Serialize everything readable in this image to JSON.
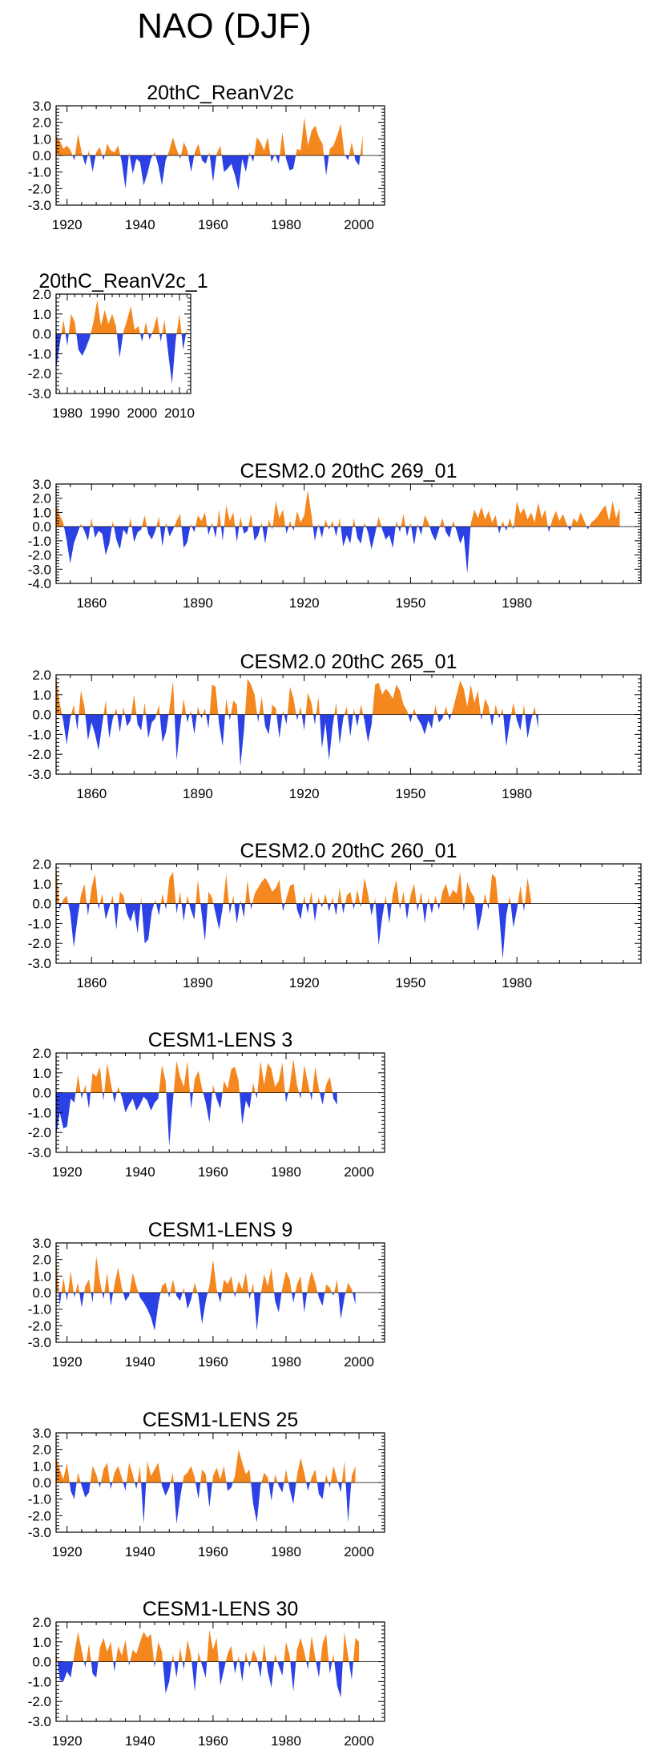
{
  "page": {
    "title": "NAO (DJF)"
  },
  "colors": {
    "positive": "#f5871f",
    "negative": "#2b41e6",
    "frame": "#000000"
  },
  "chart_data": [
    {
      "type": "area",
      "title": "20thC_ReanV2c",
      "xlim": [
        1917,
        2007
      ],
      "ylim": [
        -3.0,
        3.0
      ],
      "yticks": [
        -3.0,
        -2.0,
        -1.0,
        0.0,
        1.0,
        2.0,
        3.0
      ],
      "ytick_labels": [
        "-3.0",
        "-2.0",
        "-1.0",
        "0.0",
        "1.0",
        "2.0",
        "3.0"
      ],
      "xticks": [
        1920,
        1940,
        1960,
        1980,
        2000
      ],
      "xtick_labels": [
        "1920",
        "1940",
        "1960",
        "1980",
        "2000"
      ],
      "x_start": 1917,
      "values": [
        1.2,
        0.9,
        0.4,
        0.6,
        0.3,
        -0.3,
        1.3,
        0.2,
        -0.6,
        0.3,
        -1.0,
        0.2,
        0.5,
        -0.3,
        0.7,
        0.3,
        0.2,
        0.6,
        -0.4,
        -2.0,
        0.2,
        -1.1,
        -0.2,
        -0.4,
        -1.8,
        -1.1,
        -0.2,
        0.2,
        -0.6,
        -1.8,
        -0.3,
        0.3,
        1.1,
        0.4,
        -0.2,
        0.8,
        0.3,
        -1.0,
        0.2,
        0.7,
        -0.3,
        -0.5,
        0.2,
        -1.6,
        0.1,
        0.6,
        -1.0,
        -0.8,
        -0.5,
        -1.2,
        -2.1,
        -0.2,
        -1.0,
        0.2,
        -0.4,
        1.1,
        0.8,
        0.3,
        1.1,
        -0.4,
        0.1,
        -0.5,
        1.4,
        -0.2,
        -0.9,
        -0.8,
        0.4,
        0.3,
        2.3,
        0.6,
        1.5,
        1.8,
        1.1,
        0.7,
        -1.2,
        0.4,
        0.6,
        1.2,
        1.9,
        0.1,
        -0.3,
        0.8,
        -0.3,
        -0.6,
        1.2
      ]
    },
    {
      "type": "area",
      "title": "20thC_ReanV2c_1",
      "xlim": [
        1977,
        2013
      ],
      "ylim": [
        -3.0,
        2.0
      ],
      "yticks": [
        -3.0,
        -2.0,
        -1.0,
        0.0,
        1.0,
        2.0
      ],
      "ytick_labels": [
        "-3.0",
        "-2.0",
        "-1.0",
        "0.0",
        "1.0",
        "2.0"
      ],
      "xticks": [
        1980,
        1990,
        2000,
        2010
      ],
      "xtick_labels": [
        "1980",
        "1990",
        "2000",
        "2010"
      ],
      "x_start": 1977,
      "values": [
        -1.8,
        -0.5,
        0.7,
        -0.6,
        1.0,
        0.6,
        -0.8,
        -1.1,
        -0.7,
        -0.2,
        0.6,
        1.7,
        0.4,
        1.2,
        0.5,
        1.0,
        0.4,
        -1.2,
        0.1,
        0.7,
        1.4,
        0.2,
        0.4,
        -0.4,
        0.6,
        -0.3,
        0.2,
        0.9,
        -0.4,
        0.7,
        -1.0,
        -2.5,
        -0.3,
        1.0,
        -0.8,
        0.3
      ]
    },
    {
      "type": "area",
      "title": "CESM2.0 20thC 269_01",
      "xlim": [
        1850,
        2015
      ],
      "ylim": [
        -4.0,
        3.0
      ],
      "yticks": [
        -4.0,
        -3.0,
        -2.0,
        -1.0,
        0.0,
        1.0,
        2.0,
        3.0
      ],
      "ytick_labels": [
        "-4.0",
        "-3.0",
        "-2.0",
        "-1.0",
        "0.0",
        "1.0",
        "2.0",
        "3.0"
      ],
      "xticks": [
        1860,
        1890,
        1920,
        1950,
        1980
      ],
      "xtick_labels": [
        "1860",
        "1890",
        "1920",
        "1950",
        "1980"
      ],
      "x_start": 1850,
      "values": [
        1.5,
        0.8,
        0.3,
        -1.0,
        -2.6,
        -1.2,
        -0.5,
        0.2,
        -0.3,
        -1.0,
        0.6,
        -0.8,
        -0.3,
        -0.5,
        -2.0,
        -1.2,
        0.4,
        -0.9,
        -1.6,
        -0.2,
        -0.6,
        0.6,
        -1.1,
        -0.4,
        -0.2,
        0.8,
        -0.5,
        -0.9,
        -0.3,
        0.7,
        -1.4,
        0.3,
        -0.7,
        -0.2,
        0.4,
        0.9,
        -1.5,
        -1.1,
        0.2,
        -0.4,
        0.8,
        0.4,
        1.0,
        -0.6,
        0.3,
        -0.8,
        1.2,
        -1.0,
        1.5,
        0.4,
        1.0,
        -1.1,
        0.7,
        -0.5,
        -0.3,
        0.9,
        -1.0,
        -0.6,
        0.3,
        -1.2,
        0.5,
        -0.2,
        1.8,
        0.6,
        1.2,
        -0.5,
        0.4,
        -0.3,
        1.1,
        0.3,
        0.8,
        2.6,
        0.9,
        -1.0,
        0.2,
        -0.8,
        0.5,
        -0.2,
        0.4,
        -0.7,
        0.6,
        -1.4,
        -0.6,
        -1.2,
        0.6,
        -0.8,
        -1.2,
        0.3,
        -0.4,
        -1.6,
        -0.5,
        0.7,
        -0.2,
        -0.9,
        -0.6,
        -1.5,
        0.4,
        -0.4,
        0.9,
        -0.7,
        0.3,
        -1.3,
        0.2,
        -0.6,
        0.8,
        0.3,
        -0.5,
        -1.0,
        -0.2,
        0.6,
        -0.4,
        -0.8,
        0.4,
        -0.3,
        -1.2,
        -0.6,
        -3.3,
        0.2,
        1.2,
        0.6,
        1.4,
        0.5,
        1.1,
        0.3,
        0.8,
        -0.5,
        0.4,
        -0.3,
        0.6,
        -0.2,
        1.8,
        0.9,
        1.3,
        0.5,
        1.0,
        0.3,
        1.7,
        0.6,
        1.2,
        -0.4,
        0.5,
        1.1,
        0.4,
        0.9,
        0.2,
        -0.3,
        0.6,
        0.3,
        1.0,
        0.4,
        -0.2,
        0.3,
        0.5,
        0.8,
        1.2,
        1.5,
        0.4,
        1.8,
        0.6,
        1.3
      ]
    },
    {
      "type": "area",
      "title": "CESM2.0 20thC 265_01",
      "xlim": [
        1850,
        2015
      ],
      "ylim": [
        -3.0,
        2.0
      ],
      "yticks": [
        -3.0,
        -2.0,
        -1.0,
        0.0,
        1.0,
        2.0
      ],
      "ytick_labels": [
        "-3.0",
        "-2.0",
        "-1.0",
        "0.0",
        "1.0",
        "2.0"
      ],
      "xticks": [
        1860,
        1890,
        1920,
        1950,
        1980
      ],
      "xtick_labels": [
        "1860",
        "1890",
        "1920",
        "1950",
        "1980"
      ],
      "x_start": 1850,
      "values": [
        1.9,
        0.6,
        -0.3,
        -1.5,
        -0.2,
        0.5,
        -0.8,
        1.2,
        0.4,
        -1.3,
        -0.4,
        -1.0,
        -1.8,
        -0.5,
        0.7,
        -1.2,
        -0.2,
        0.3,
        -0.9,
        0.4,
        -0.6,
        -0.3,
        1.0,
        -0.5,
        -0.8,
        0.6,
        -1.2,
        -0.4,
        -0.2,
        0.5,
        -1.4,
        -0.9,
        0.3,
        1.7,
        -2.3,
        -0.6,
        0.8,
        -0.4,
        0.2,
        -1.0,
        0.4,
        -0.2,
        0.3,
        -0.7,
        1.5,
        1.4,
        -0.5,
        -1.6,
        0.8,
        -0.3,
        0.7,
        0.5,
        -2.6,
        -0.8,
        1.8,
        1.5,
        1.0,
        -0.4,
        0.9,
        -0.6,
        -1.0,
        0.5,
        0.3,
        -1.2,
        0.2,
        -0.5,
        1.4,
        0.8,
        -0.3,
        0.4,
        -0.8,
        1.1,
        0.6,
        -0.5,
        0.9,
        -1.7,
        -0.4,
        -2.3,
        -0.6,
        0.6,
        -1.5,
        -0.2,
        0.4,
        -1.1,
        0.3,
        -0.6,
        0.5,
        -0.3,
        -1.4,
        -0.5,
        1.5,
        1.6,
        1.0,
        1.3,
        1.1,
        0.8,
        1.5,
        1.2,
        0.5,
        0.2,
        -0.4,
        0.3,
        -0.2,
        -0.5,
        -1.0,
        -0.3,
        -0.7,
        0.5,
        -0.4,
        -0.2,
        0.4,
        -0.3,
        0.3,
        1.0,
        1.7,
        1.3,
        0.4,
        1.5,
        0.6,
        1.2,
        -0.3,
        0.8,
        0.4,
        -0.6,
        0.5,
        -0.2,
        0.3,
        -1.6,
        -0.4,
        0.6,
        -0.3,
        -0.8,
        0.5,
        -1.2,
        -0.3,
        0.4,
        -0.7
      ]
    },
    {
      "type": "area",
      "title": "CESM2.0 20thC 260_01",
      "xlim": [
        1850,
        2015
      ],
      "ylim": [
        -3.0,
        2.0
      ],
      "yticks": [
        -3.0,
        -2.0,
        -1.0,
        0.0,
        1.0,
        2.0
      ],
      "ytick_labels": [
        "-3.0",
        "-2.0",
        "-1.0",
        "0.0",
        "1.0",
        "2.0"
      ],
      "xticks": [
        1860,
        1890,
        1920,
        1950,
        1980
      ],
      "xtick_labels": [
        "1860",
        "1890",
        "1920",
        "1950",
        "1980"
      ],
      "x_start": 1850,
      "values": [
        1.9,
        -0.3,
        0.2,
        0.4,
        -0.5,
        -2.2,
        -0.8,
        0.4,
        1.0,
        -0.6,
        0.8,
        1.5,
        -0.3,
        0.5,
        -0.8,
        -0.2,
        0.4,
        -1.3,
        0.6,
        0.4,
        -0.5,
        -0.9,
        -0.3,
        -1.5,
        0.3,
        -2.0,
        -1.8,
        -0.4,
        0.2,
        -0.6,
        0.5,
        -0.3,
        1.3,
        1.6,
        -0.5,
        0.6,
        -0.9,
        0.4,
        -0.3,
        -0.8,
        1.2,
        -0.4,
        -1.9,
        0.6,
        0.3,
        -0.5,
        -1.3,
        -0.2,
        1.5,
        -0.5,
        0.4,
        -1.0,
        0.2,
        -0.7,
        1.2,
        -0.3,
        0.5,
        0.8,
        1.1,
        1.3,
        1.0,
        0.6,
        0.8,
        1.2,
        -0.4,
        0.3,
        0.9,
        1.0,
        -0.3,
        -0.8,
        0.4,
        -0.5,
        0.6,
        -0.9,
        0.3,
        -0.2,
        0.5,
        -0.4,
        0.3,
        -0.6,
        0.8,
        -0.5,
        0.4,
        0.6,
        -0.3,
        0.7,
        -0.2,
        1.3,
        0.5,
        -0.6,
        0.3,
        -2.1,
        -0.7,
        0.4,
        -1.0,
        0.5,
        1.2,
        -0.3,
        0.6,
        -0.8,
        0.4,
        1.0,
        -0.4,
        0.6,
        -1.0,
        0.3,
        -0.5,
        0.4,
        -0.3,
        0.6,
        1.0,
        0.3,
        0.7,
        0.5,
        1.6,
        -0.4,
        1.1,
        0.6,
        0.3,
        -1.4,
        -0.6,
        0.5,
        -0.3,
        1.5,
        1.3,
        -0.5,
        -2.8,
        -0.6,
        0.4,
        -1.2,
        -0.3,
        0.9,
        -0.4,
        1.3,
        0.2
      ]
    },
    {
      "type": "area",
      "title": "CESM1-LENS 3",
      "xlim": [
        1917,
        2007
      ],
      "ylim": [
        -3.0,
        2.0
      ],
      "yticks": [
        -3.0,
        -2.0,
        -1.0,
        0.0,
        1.0,
        2.0
      ],
      "ytick_labels": [
        "-3.0",
        "-2.0",
        "-1.0",
        "0.0",
        "1.0",
        "2.0"
      ],
      "xticks": [
        1920,
        1940,
        1960,
        1980,
        2000
      ],
      "xtick_labels": [
        "1920",
        "1940",
        "1960",
        "1980",
        "2000"
      ],
      "x_start": 1917,
      "values": [
        -2.2,
        -1.0,
        -1.8,
        -1.7,
        -0.3,
        -0.5,
        0.9,
        -0.3,
        0.4,
        -0.8,
        1.0,
        0.8,
        1.3,
        -0.4,
        1.5,
        0.5,
        -0.5,
        0.3,
        -0.2,
        -1.0,
        -0.6,
        -0.3,
        -0.9,
        -0.6,
        -0.2,
        -0.4,
        -0.9,
        -0.5,
        -0.3,
        1.4,
        0.6,
        -2.7,
        -0.4,
        1.6,
        0.8,
        0.3,
        1.6,
        -0.8,
        0.7,
        1.1,
        0.2,
        -0.5,
        -1.5,
        0.4,
        -0.3,
        -0.8,
        0.6,
        0.2,
        1.2,
        1.3,
        0.6,
        -1.6,
        -0.4,
        -0.8,
        0.5,
        -0.3,
        1.6,
        0.4,
        1.5,
        1.2,
        0.3,
        0.6,
        1.5,
        -0.5,
        0.3,
        1.7,
        0.4,
        -0.3,
        1.4,
        0.5,
        -0.4,
        1.3,
        0.2,
        -0.6,
        0.4,
        0.8,
        -0.3,
        -0.6
      ]
    },
    {
      "type": "area",
      "title": "CESM1-LENS 9",
      "xlim": [
        1917,
        2007
      ],
      "ylim": [
        -3.0,
        3.0
      ],
      "yticks": [
        -3.0,
        -2.0,
        -1.0,
        0.0,
        1.0,
        2.0,
        3.0
      ],
      "ytick_labels": [
        "-3.0",
        "-2.0",
        "-1.0",
        "0.0",
        "1.0",
        "2.0",
        "3.0"
      ],
      "xticks": [
        1920,
        1940,
        1960,
        1980,
        2000
      ],
      "xtick_labels": [
        "1920",
        "1940",
        "1960",
        "1980",
        "2000"
      ],
      "x_start": 1917,
      "values": [
        2.1,
        -0.8,
        0.9,
        -0.5,
        1.3,
        -0.3,
        0.6,
        -0.9,
        0.4,
        0.8,
        -0.6,
        2.2,
        0.7,
        -0.4,
        1.2,
        -0.8,
        0.5,
        1.5,
        0.3,
        -0.5,
        -0.2,
        1.2,
        0.4,
        -0.3,
        -0.6,
        -1.0,
        -1.5,
        -2.3,
        -0.7,
        0.4,
        0.6,
        -0.3,
        0.8,
        -0.2,
        -0.5,
        0.3,
        -1.0,
        -0.4,
        0.6,
        -0.2,
        -1.9,
        -0.5,
        0.4,
        2.0,
        0.2,
        -0.6,
        0.8,
        0.5,
        1.0,
        -0.3,
        0.7,
        0.2,
        1.2,
        -0.4,
        0.6,
        -2.3,
        -0.2,
        1.1,
        0.4,
        1.5,
        -0.5,
        -1.2,
        0.3,
        1.3,
        0.8,
        -0.6,
        0.5,
        1.0,
        -1.2,
        0.4,
        1.3,
        0.6,
        -0.3,
        -0.8,
        0.5,
        0.3,
        -0.2,
        0.8,
        -1.6,
        -0.3,
        0.6,
        0.2,
        -0.7
      ]
    },
    {
      "type": "area",
      "title": "CESM1-LENS 25",
      "xlim": [
        1917,
        2007
      ],
      "ylim": [
        -3.0,
        3.0
      ],
      "yticks": [
        -3.0,
        -2.0,
        -1.0,
        0.0,
        1.0,
        2.0,
        3.0
      ],
      "ytick_labels": [
        "-3.0",
        "-2.0",
        "-1.0",
        "0.0",
        "1.0",
        "2.0",
        "3.0"
      ],
      "xticks": [
        1920,
        1940,
        1960,
        1980,
        2000
      ],
      "xtick_labels": [
        "1920",
        "1940",
        "1960",
        "1980",
        "2000"
      ],
      "x_start": 1917,
      "values": [
        1.5,
        0.8,
        0.2,
        1.2,
        -0.5,
        -1.0,
        0.6,
        -0.2,
        -0.9,
        -0.6,
        1.0,
        0.5,
        -0.3,
        0.8,
        1.2,
        -0.4,
        0.6,
        1.0,
        0.3,
        -0.5,
        1.2,
        0.5,
        -0.4,
        1.0,
        -2.5,
        1.3,
        0.4,
        0.8,
        1.2,
        -0.2,
        -0.8,
        -0.3,
        0.6,
        -2.5,
        -0.9,
        0.4,
        0.6,
        1.0,
        0.3,
        -1.0,
        0.8,
        0.5,
        -1.5,
        0.4,
        0.9,
        0.2,
        1.0,
        -0.5,
        -0.3,
        0.4,
        2.0,
        1.2,
        0.5,
        0.8,
        -1.3,
        -2.4,
        -0.2,
        0.6,
        0.3,
        -1.1,
        0.5,
        -0.2,
        -0.6,
        0.8,
        -0.4,
        -1.3,
        0.4,
        1.5,
        0.6,
        -0.5,
        0.3,
        0.8,
        -0.7,
        -1.0,
        0.5,
        -0.3,
        1.0,
        0.2,
        -0.6,
        1.3,
        -2.4,
        0.4,
        1.0
      ]
    },
    {
      "type": "area",
      "title": "CESM1-LENS 30",
      "xlim": [
        1917,
        2007
      ],
      "ylim": [
        -3.0,
        2.0
      ],
      "yticks": [
        -3.0,
        -2.0,
        -1.0,
        0.0,
        1.0,
        2.0
      ],
      "ytick_labels": [
        "-3.0",
        "-2.0",
        "-1.0",
        "0.0",
        "1.0",
        "2.0"
      ],
      "xticks": [
        1920,
        1940,
        1960,
        1980,
        2000
      ],
      "xtick_labels": [
        "1920",
        "1940",
        "1960",
        "1980",
        "2000"
      ],
      "x_start": 1917,
      "values": [
        0.6,
        -0.9,
        -1.0,
        -0.5,
        -0.8,
        0.4,
        1.5,
        0.6,
        -0.3,
        0.9,
        -0.6,
        -0.8,
        0.7,
        1.2,
        0.5,
        1.0,
        -0.5,
        0.8,
        0.3,
        1.1,
        -0.2,
        0.6,
        0.4,
        1.0,
        1.5,
        1.2,
        1.4,
        -0.3,
        1.0,
        0.5,
        -1.6,
        -1.0,
        0.4,
        -0.8,
        0.7,
        -0.4,
        1.1,
        0.3,
        -1.5,
        0.5,
        -0.2,
        -0.8,
        1.6,
        0.6,
        1.2,
        -1.2,
        -0.4,
        0.4,
        0.8,
        -0.6,
        0.3,
        -1.0,
        0.5,
        -0.3,
        0.6,
        0.2,
        -0.8,
        0.9,
        -0.5,
        -1.3,
        0.4,
        -0.2,
        -0.7,
        1.0,
        0.3,
        -1.5,
        0.6,
        1.2,
        0.5,
        -0.4,
        1.3,
        0.2,
        -0.8,
        0.9,
        1.4,
        -0.6,
        0.4,
        -1.2,
        -1.8,
        1.5,
        0.3,
        -0.9,
        1.2,
        1.0
      ]
    }
  ]
}
